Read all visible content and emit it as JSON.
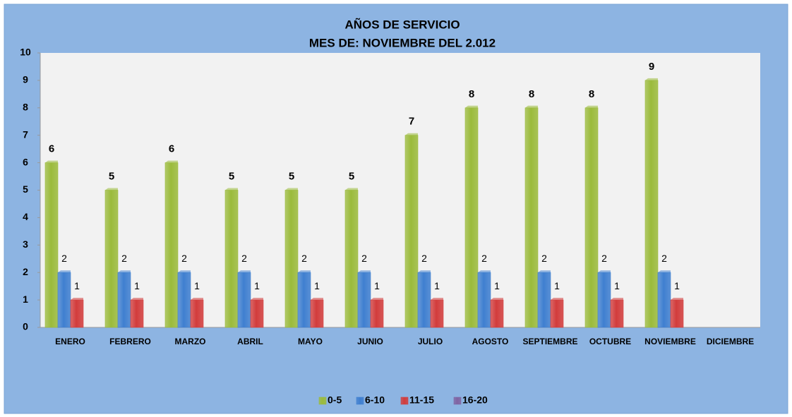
{
  "chart_data": {
    "type": "bar",
    "title": "AÑOS DE SERVICIO",
    "subtitle": "MES DE: NOVIEMBRE DEL 2.012",
    "categories": [
      "ENERO",
      "FEBRERO",
      "MARZO",
      "ABRIL",
      "MAYO",
      "JUNIO",
      "JULIO",
      "AGOSTO",
      "SEPTIEMBRE",
      "OCTUBRE",
      "NOVIEMBRE",
      "DICIEMBRE"
    ],
    "series": [
      {
        "name": "0-5",
        "color": "#9bbb3b",
        "values": [
          6,
          5,
          6,
          5,
          5,
          5,
          7,
          8,
          8,
          8,
          9,
          null
        ]
      },
      {
        "name": "6-10",
        "color": "#3f7fd0",
        "values": [
          2,
          2,
          2,
          2,
          2,
          2,
          2,
          2,
          2,
          2,
          2,
          null
        ]
      },
      {
        "name": "11-15",
        "color": "#d23c3c",
        "values": [
          1,
          1,
          1,
          1,
          1,
          1,
          1,
          1,
          1,
          1,
          1,
          null
        ]
      },
      {
        "name": "16-20",
        "color": "#8064a2",
        "values": [
          null,
          null,
          null,
          null,
          null,
          null,
          null,
          null,
          null,
          null,
          null,
          null
        ]
      }
    ],
    "ylim": [
      0,
      10
    ],
    "yticks": [
      0,
      1,
      2,
      3,
      4,
      5,
      6,
      7,
      8,
      9,
      10
    ],
    "grid": false,
    "legend": "bottom"
  }
}
